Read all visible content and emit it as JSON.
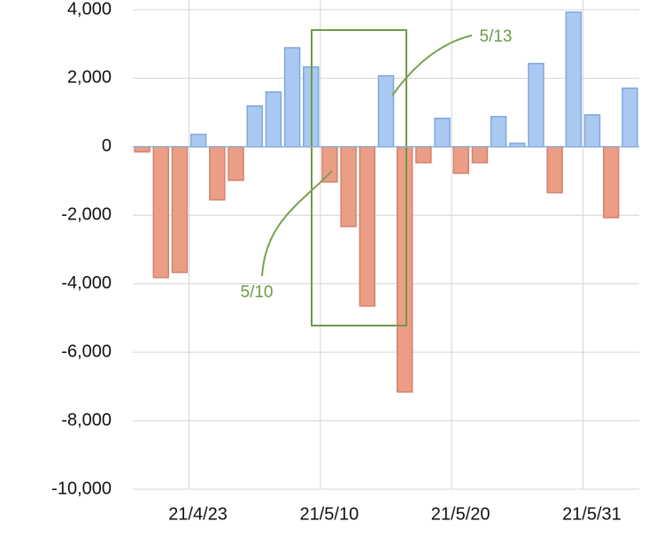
{
  "chart_data": {
    "type": "bar",
    "categories": [
      null,
      null,
      null,
      "21/4/23",
      null,
      null,
      null,
      null,
      null,
      null,
      "21/5/10",
      null,
      null,
      null,
      null,
      null,
      null,
      "21/5/20",
      null,
      null,
      null,
      null,
      null,
      null,
      "21/5/31",
      null,
      null
    ],
    "values": [
      -150,
      -3820,
      -3670,
      360,
      -1550,
      -980,
      1190,
      1600,
      2890,
      2330,
      -1030,
      -2330,
      -4650,
      2070,
      -7160,
      -465,
      830,
      -775,
      -465,
      880,
      100,
      2430,
      -1340,
      3930,
      930,
      -2070,
      1710
    ],
    "positive_color": "#a9c9f2",
    "negative_color": "#ec9d86",
    "ylim": [
      -10000,
      4000
    ],
    "yticks": [
      {
        "value": -10000,
        "label": "-10,000"
      },
      {
        "value": -8000,
        "label": "-8,000"
      },
      {
        "value": -6000,
        "label": "-6,000"
      },
      {
        "value": -4000,
        "label": "-4,000"
      },
      {
        "value": -2000,
        "label": "-2,000"
      },
      0,
      {
        "value": 2000,
        "label": "2,000"
      },
      {
        "value": 4000,
        "label": "4,000"
      }
    ],
    "grid": true,
    "annotations": [
      "5/10",
      "5/13"
    ]
  }
}
